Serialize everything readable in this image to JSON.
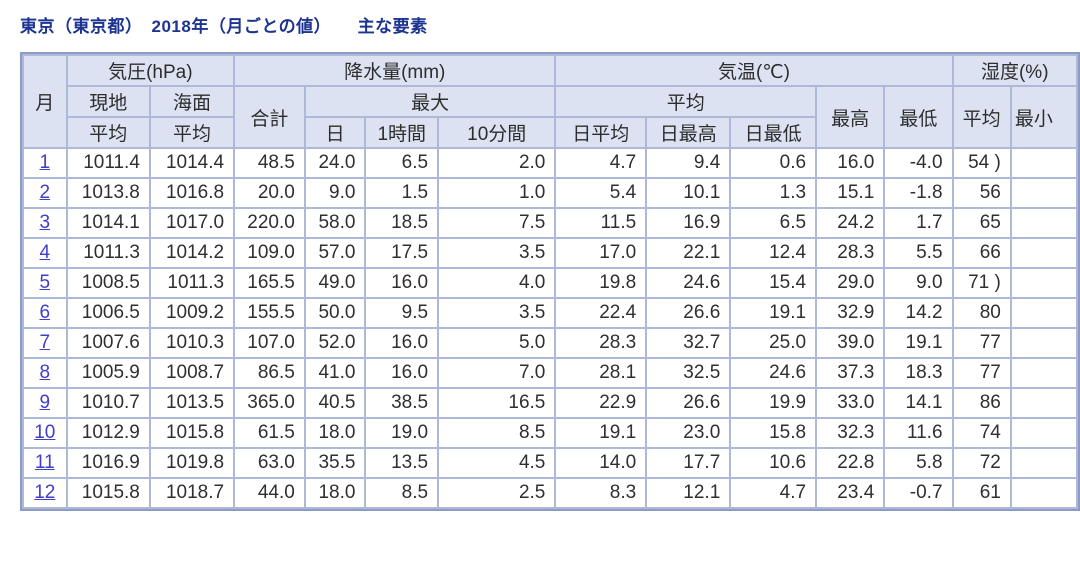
{
  "page_title": "東京（東京都）　2018年（月ごとの値）　　主な要素",
  "colors": {
    "title_text": "#1c3490",
    "link_text": "#3e3ecb",
    "header_bg": "#dce2f1",
    "inner_border": "#aeb9da",
    "outer_border": "#8d9cc6",
    "value_text": "#2f2f2f"
  },
  "table": {
    "header": {
      "month": "月",
      "pressure_group": "気圧(hPa)",
      "precip_group": "降水量(mm)",
      "temp_group": "気温(℃)",
      "humidity_group": "湿度(%)",
      "pressure_local": "現地",
      "pressure_sea": "海面",
      "pressure_local_sub": "平均",
      "pressure_sea_sub": "平均",
      "precip_total": "合計",
      "precip_max": "最大",
      "precip_max_day": "日",
      "precip_max_1h": "1時間",
      "precip_max_10min": "10分間",
      "temp_avg": "平均",
      "temp_daily_avg": "日平均",
      "temp_daily_max": "日最高",
      "temp_daily_min": "日最低",
      "temp_highest": "最高",
      "temp_lowest": "最低",
      "humidity_avg": "平均",
      "humidity_min": "最小"
    },
    "rows": [
      {
        "month": "1",
        "values": [
          "1011.4",
          "1014.4",
          "48.5",
          "24.0",
          "6.5",
          "2.0",
          "4.7",
          "9.4",
          "0.6",
          "16.0",
          "-4.0",
          "54 )",
          ""
        ]
      },
      {
        "month": "2",
        "values": [
          "1013.8",
          "1016.8",
          "20.0",
          "9.0",
          "1.5",
          "1.0",
          "5.4",
          "10.1",
          "1.3",
          "15.1",
          "-1.8",
          "56",
          ""
        ]
      },
      {
        "month": "3",
        "values": [
          "1014.1",
          "1017.0",
          "220.0",
          "58.0",
          "18.5",
          "7.5",
          "11.5",
          "16.9",
          "6.5",
          "24.2",
          "1.7",
          "65",
          ""
        ]
      },
      {
        "month": "4",
        "values": [
          "1011.3",
          "1014.2",
          "109.0",
          "57.0",
          "17.5",
          "3.5",
          "17.0",
          "22.1",
          "12.4",
          "28.3",
          "5.5",
          "66",
          ""
        ]
      },
      {
        "month": "5",
        "values": [
          "1008.5",
          "1011.3",
          "165.5",
          "49.0",
          "16.0",
          "4.0",
          "19.8",
          "24.6",
          "15.4",
          "29.0",
          "9.0",
          "71 )",
          ""
        ]
      },
      {
        "month": "6",
        "values": [
          "1006.5",
          "1009.2",
          "155.5",
          "50.0",
          "9.5",
          "3.5",
          "22.4",
          "26.6",
          "19.1",
          "32.9",
          "14.2",
          "80",
          ""
        ]
      },
      {
        "month": "7",
        "values": [
          "1007.6",
          "1010.3",
          "107.0",
          "52.0",
          "16.0",
          "5.0",
          "28.3",
          "32.7",
          "25.0",
          "39.0",
          "19.1",
          "77",
          ""
        ]
      },
      {
        "month": "8",
        "values": [
          "1005.9",
          "1008.7",
          "86.5",
          "41.0",
          "16.0",
          "7.0",
          "28.1",
          "32.5",
          "24.6",
          "37.3",
          "18.3",
          "77",
          ""
        ]
      },
      {
        "month": "9",
        "values": [
          "1010.7",
          "1013.5",
          "365.0",
          "40.5",
          "38.5",
          "16.5",
          "22.9",
          "26.6",
          "19.9",
          "33.0",
          "14.1",
          "86",
          ""
        ]
      },
      {
        "month": "10",
        "values": [
          "1012.9",
          "1015.8",
          "61.5",
          "18.0",
          "19.0",
          "8.5",
          "19.1",
          "23.0",
          "15.8",
          "32.3",
          "11.6",
          "74",
          ""
        ]
      },
      {
        "month": "11",
        "values": [
          "1016.9",
          "1019.8",
          "63.0",
          "35.5",
          "13.5",
          "4.5",
          "14.0",
          "17.7",
          "10.6",
          "22.8",
          "5.8",
          "72",
          ""
        ]
      },
      {
        "month": "12",
        "values": [
          "1015.8",
          "1018.7",
          "44.0",
          "18.0",
          "8.5",
          "2.5",
          "8.3",
          "12.1",
          "4.7",
          "23.4",
          "-0.7",
          "61",
          ""
        ]
      }
    ]
  }
}
